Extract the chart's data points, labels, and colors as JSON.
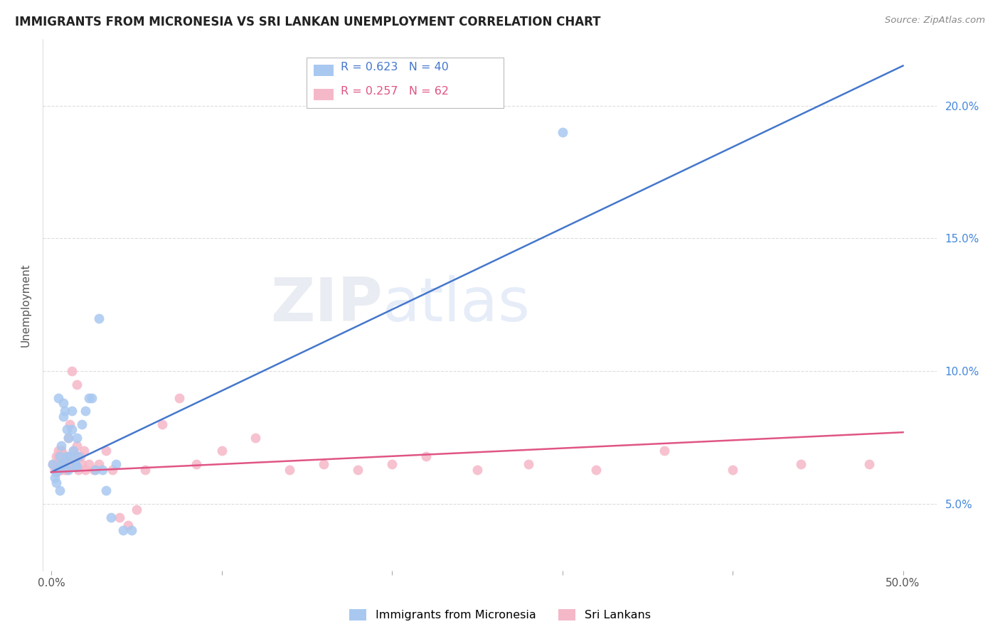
{
  "title": "IMMIGRANTS FROM MICRONESIA VS SRI LANKAN UNEMPLOYMENT CORRELATION CHART",
  "source": "Source: ZipAtlas.com",
  "ylabel": "Unemployment",
  "y_ticks": [
    0.05,
    0.1,
    0.15,
    0.2
  ],
  "y_tick_labels": [
    "5.0%",
    "10.0%",
    "15.0%",
    "20.0%"
  ],
  "x_ticks": [
    0.0,
    0.1,
    0.2,
    0.3,
    0.4,
    0.5
  ],
  "x_tick_labels": [
    "0.0%",
    "",
    "",
    "",
    "",
    "50.0%"
  ],
  "blue_color": "#a8c8f0",
  "blue_line_color": "#4477cc",
  "pink_color": "#f5b8c8",
  "pink_line_color": "#e05585",
  "legend_blue_r": "R = 0.623",
  "legend_blue_n": "N = 40",
  "legend_pink_r": "R = 0.257",
  "legend_pink_n": "N = 62",
  "watermark_text": "ZIPatlas",
  "blue_scatter_x": [
    0.001,
    0.002,
    0.003,
    0.003,
    0.004,
    0.004,
    0.005,
    0.005,
    0.006,
    0.006,
    0.007,
    0.007,
    0.008,
    0.008,
    0.009,
    0.009,
    0.01,
    0.01,
    0.011,
    0.012,
    0.012,
    0.013,
    0.014,
    0.015,
    0.015,
    0.016,
    0.018,
    0.02,
    0.022,
    0.024,
    0.026,
    0.028,
    0.03,
    0.032,
    0.035,
    0.038,
    0.042,
    0.047,
    0.25,
    0.3
  ],
  "blue_scatter_y": [
    0.065,
    0.06,
    0.062,
    0.058,
    0.09,
    0.063,
    0.068,
    0.055,
    0.072,
    0.065,
    0.088,
    0.083,
    0.085,
    0.065,
    0.078,
    0.068,
    0.075,
    0.063,
    0.068,
    0.085,
    0.078,
    0.07,
    0.065,
    0.075,
    0.064,
    0.068,
    0.08,
    0.085,
    0.09,
    0.09,
    0.063,
    0.12,
    0.063,
    0.055,
    0.045,
    0.065,
    0.04,
    0.04,
    0.205,
    0.19
  ],
  "pink_scatter_x": [
    0.001,
    0.002,
    0.003,
    0.003,
    0.004,
    0.004,
    0.005,
    0.005,
    0.006,
    0.006,
    0.007,
    0.007,
    0.008,
    0.008,
    0.009,
    0.01,
    0.011,
    0.012,
    0.013,
    0.014,
    0.015,
    0.016,
    0.017,
    0.018,
    0.019,
    0.02,
    0.022,
    0.025,
    0.028,
    0.032,
    0.036,
    0.04,
    0.045,
    0.05,
    0.055,
    0.065,
    0.075,
    0.085,
    0.1,
    0.12,
    0.14,
    0.16,
    0.18,
    0.2,
    0.22,
    0.25,
    0.28,
    0.32,
    0.36,
    0.4,
    0.44,
    0.48,
    0.003,
    0.004,
    0.005,
    0.006,
    0.007,
    0.008,
    0.009,
    0.01,
    0.012,
    0.015
  ],
  "pink_scatter_y": [
    0.065,
    0.063,
    0.065,
    0.062,
    0.068,
    0.07,
    0.064,
    0.066,
    0.063,
    0.07,
    0.065,
    0.067,
    0.063,
    0.065,
    0.068,
    0.075,
    0.08,
    0.065,
    0.07,
    0.068,
    0.072,
    0.063,
    0.068,
    0.065,
    0.07,
    0.063,
    0.065,
    0.063,
    0.065,
    0.07,
    0.063,
    0.045,
    0.042,
    0.048,
    0.063,
    0.08,
    0.09,
    0.065,
    0.07,
    0.075,
    0.063,
    0.065,
    0.063,
    0.065,
    0.068,
    0.063,
    0.065,
    0.063,
    0.07,
    0.063,
    0.065,
    0.065,
    0.068,
    0.065,
    0.063,
    0.07,
    0.065,
    0.068,
    0.063,
    0.065,
    0.1,
    0.095
  ],
  "blue_line_x": [
    0.0,
    0.5
  ],
  "blue_line_y": [
    0.062,
    0.215
  ],
  "pink_line_x": [
    0.0,
    0.5
  ],
  "pink_line_y": [
    0.062,
    0.077
  ],
  "xlim": [
    -0.005,
    0.52
  ],
  "ylim": [
    0.025,
    0.225
  ],
  "background_color": "#ffffff",
  "grid_color": "#dddddd"
}
